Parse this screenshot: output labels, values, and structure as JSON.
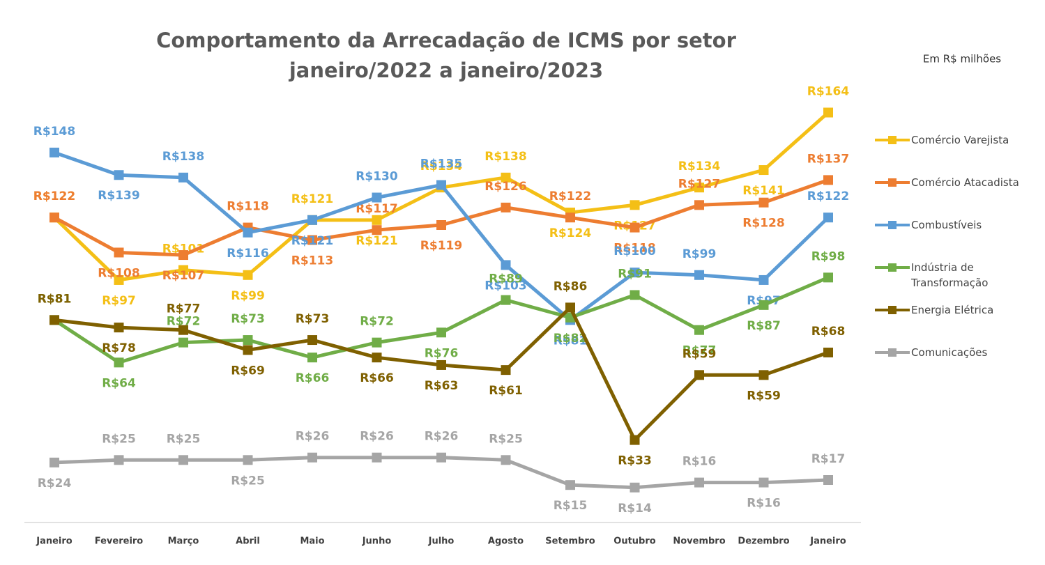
{
  "chart_data": {
    "type": "line",
    "title": "Comportamento da Arrecadação de ICMS por setor",
    "subtitle": "janeiro/2022 a janeiro/2023",
    "note": "Em R$ milhões",
    "categories": [
      "Janeiro",
      "Fevereiro",
      "Março",
      "Abril",
      "Maio",
      "Junho",
      "Julho",
      "Agosto",
      "Setembro",
      "Outubro",
      "Novembro",
      "Dezembro",
      "Janeiro"
    ],
    "ylim": [
      0,
      170
    ],
    "series": [
      {
        "name": "Comércio Varejista",
        "color": "#f4bf16",
        "values": [
          122,
          97,
          101,
          99,
          121,
          121,
          134,
          138,
          124,
          127,
          134,
          141,
          164
        ],
        "value_labels": [
          "R$122",
          "R$97",
          "R$101",
          "R$99",
          "R$121",
          "R$121",
          "R$134",
          "R$138",
          "R$124",
          "R$127",
          "R$134",
          "R$141",
          "R$164"
        ]
      },
      {
        "name": "Comércio Atacadista",
        "color": "#ed7d31",
        "values": [
          122,
          108,
          107,
          118,
          113,
          117,
          119,
          126,
          122,
          118,
          127,
          128,
          137
        ],
        "value_labels": [
          "R$122",
          "R$108",
          "R$107",
          "R$118",
          "R$113",
          "R$117",
          "R$119",
          "R$126",
          "R$122",
          "R$118",
          "R$127",
          "R$128",
          "R$137"
        ]
      },
      {
        "name": "Combustíveis",
        "color": "#5b9bd5",
        "values": [
          148,
          139,
          138,
          116,
          121,
          130,
          135,
          103,
          81,
          100,
          99,
          97,
          122
        ],
        "value_labels": [
          "R$148",
          "R$139",
          "R$138",
          "R$116",
          "R$121",
          "R$130",
          "R$135",
          "R$103",
          "R$81",
          "R$100",
          "R$99",
          "R$97",
          "R$122"
        ]
      },
      {
        "name": "Indústria de Transformação",
        "color": "#70ad47",
        "values": [
          81,
          64,
          72,
          73,
          66,
          72,
          76,
          89,
          82,
          91,
          77,
          87,
          98
        ],
        "value_labels": [
          "R$81",
          "R$64",
          "R$72",
          "R$73",
          "R$66",
          "R$72",
          "R$76",
          "R$89",
          "R$82",
          "R$91",
          "R$77",
          "R$87",
          "R$98"
        ]
      },
      {
        "name": "Energia Elétrica",
        "color": "#7f6000",
        "values": [
          81,
          78,
          77,
          69,
          73,
          66,
          63,
          61,
          86,
          33,
          59,
          59,
          68
        ],
        "value_labels": [
          "R$81",
          "R$78",
          "R$77",
          "R$69",
          "R$73",
          "R$66",
          "R$63",
          "R$61",
          "R$86",
          "R$33",
          "R$59",
          "R$59",
          "R$68"
        ]
      },
      {
        "name": "Comunicações",
        "color": "#a5a5a5",
        "values": [
          24,
          25,
          25,
          25,
          26,
          26,
          26,
          25,
          15,
          14,
          16,
          16,
          17
        ],
        "value_labels": [
          "R$24",
          "R$25",
          "R$25",
          "R$25",
          "R$26",
          "R$26",
          "R$26",
          "R$25",
          "R$15",
          "R$14",
          "R$16",
          "R$16",
          "R$17"
        ]
      }
    ]
  }
}
